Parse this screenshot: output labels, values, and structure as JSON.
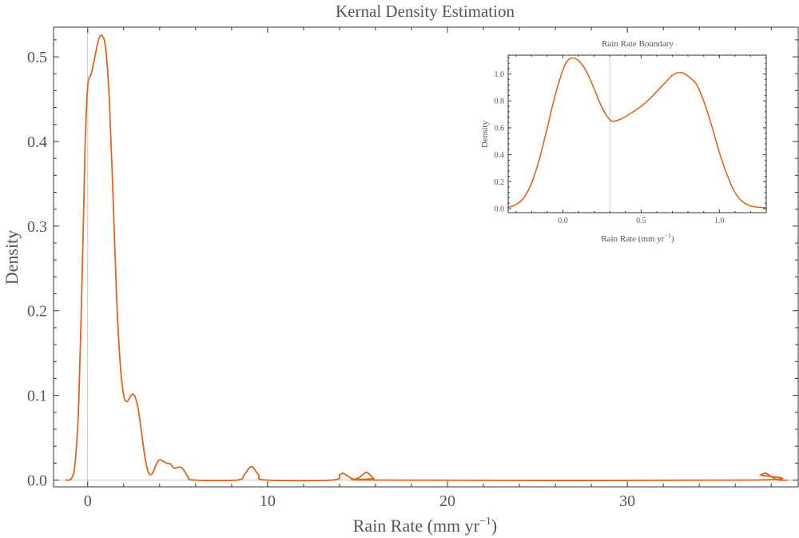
{
  "chart_data": [
    {
      "id": "main",
      "type": "line",
      "title": "Kernal Density Estimation",
      "xlabel_base": "Rain Rate (mm yr",
      "xlabel_sup": "−1",
      "xlabel_tail": ")",
      "ylabel": "Density",
      "xlim": [
        -1.9,
        39.5
      ],
      "ylim": [
        -0.008,
        0.535
      ],
      "xticks": [
        0,
        10,
        20,
        30
      ],
      "xtick_labels": [
        "0",
        "10",
        "20",
        "30"
      ],
      "yticks": [
        0.0,
        0.1,
        0.2,
        0.3,
        0.4,
        0.5
      ],
      "ytick_labels": [
        "0.0",
        "0.1",
        "0.2",
        "0.3",
        "0.4",
        "0.5"
      ],
      "vline_x": 0,
      "hline_y": 0,
      "line_color": "#E0651E",
      "series": [
        {
          "points": [
            [
              -1.2,
              0.0
            ],
            [
              -0.9,
              0.002
            ],
            [
              -0.7,
              0.02
            ],
            [
              -0.5,
              0.09
            ],
            [
              -0.3,
              0.25
            ],
            [
              -0.15,
              0.39
            ],
            [
              0.0,
              0.465
            ],
            [
              0.2,
              0.48
            ],
            [
              0.4,
              0.5
            ],
            [
              0.6,
              0.52
            ],
            [
              0.8,
              0.525
            ],
            [
              1.0,
              0.51
            ],
            [
              1.2,
              0.45
            ],
            [
              1.4,
              0.34
            ],
            [
              1.6,
              0.22
            ],
            [
              1.8,
              0.14
            ],
            [
              2.0,
              0.1
            ],
            [
              2.2,
              0.093
            ],
            [
              2.4,
              0.1
            ],
            [
              2.6,
              0.1
            ],
            [
              2.8,
              0.085
            ],
            [
              3.0,
              0.055
            ],
            [
              3.2,
              0.025
            ],
            [
              3.4,
              0.008
            ],
            [
              3.6,
              0.008
            ],
            [
              3.8,
              0.018
            ],
            [
              4.0,
              0.024
            ],
            [
              4.2,
              0.022
            ],
            [
              4.4,
              0.02
            ],
            [
              4.6,
              0.019
            ],
            [
              4.8,
              0.014
            ],
            [
              5.0,
              0.015
            ],
            [
              5.2,
              0.015
            ],
            [
              5.4,
              0.01
            ],
            [
              5.6,
              0.003
            ],
            [
              5.9,
              0.0
            ],
            [
              8.3,
              0.0
            ],
            [
              8.7,
              0.006
            ],
            [
              9.1,
              0.016
            ],
            [
              9.5,
              0.006
            ],
            [
              9.9,
              0.0
            ],
            [
              13.6,
              0.0
            ],
            [
              14.0,
              0.006
            ],
            [
              14.2,
              0.008
            ],
            [
              14.5,
              0.004
            ],
            [
              14.8,
              0.001
            ],
            [
              15.1,
              0.003
            ],
            [
              15.5,
              0.009
            ],
            [
              15.9,
              0.002
            ],
            [
              16.3,
              0.0
            ],
            [
              37.0,
              0.0
            ],
            [
              37.4,
              0.006
            ],
            [
              37.7,
              0.008
            ],
            [
              38.0,
              0.004
            ],
            [
              38.4,
              0.0
            ],
            [
              38.9,
              0.0
            ]
          ]
        }
      ]
    },
    {
      "id": "inset",
      "type": "line",
      "title": "Rain Rate Boundary",
      "xlabel_base": "Rain Rate (mm yr",
      "xlabel_sup": "−1",
      "xlabel_tail": ")",
      "ylabel": "Density",
      "xlim": [
        -0.35,
        1.3
      ],
      "ylim": [
        -0.03,
        1.14
      ],
      "xticks": [
        0.0,
        0.5,
        1.0
      ],
      "xtick_labels": [
        "0.0",
        "0.5",
        "1.0"
      ],
      "yticks": [
        0.0,
        0.2,
        0.4,
        0.6,
        0.8,
        1.0
      ],
      "ytick_labels": [
        "0.0",
        "0.2",
        "0.4",
        "0.6",
        "0.8",
        "1.0"
      ],
      "vline_x": 0.3,
      "line_color": "#E0651E",
      "series": [
        {
          "points": [
            [
              -0.35,
              0.01
            ],
            [
              -0.3,
              0.03
            ],
            [
              -0.25,
              0.08
            ],
            [
              -0.2,
              0.19
            ],
            [
              -0.15,
              0.37
            ],
            [
              -0.1,
              0.6
            ],
            [
              -0.05,
              0.84
            ],
            [
              0.0,
              1.03
            ],
            [
              0.03,
              1.1
            ],
            [
              0.06,
              1.12
            ],
            [
              0.1,
              1.1
            ],
            [
              0.15,
              1.02
            ],
            [
              0.2,
              0.89
            ],
            [
              0.25,
              0.75
            ],
            [
              0.3,
              0.66
            ],
            [
              0.33,
              0.65
            ],
            [
              0.38,
              0.67
            ],
            [
              0.45,
              0.72
            ],
            [
              0.5,
              0.76
            ],
            [
              0.55,
              0.81
            ],
            [
              0.6,
              0.87
            ],
            [
              0.65,
              0.93
            ],
            [
              0.7,
              0.99
            ],
            [
              0.74,
              1.01
            ],
            [
              0.78,
              1.0
            ],
            [
              0.85,
              0.93
            ],
            [
              0.9,
              0.8
            ],
            [
              0.95,
              0.62
            ],
            [
              1.0,
              0.42
            ],
            [
              1.05,
              0.25
            ],
            [
              1.1,
              0.12
            ],
            [
              1.15,
              0.05
            ],
            [
              1.2,
              0.02
            ],
            [
              1.25,
              0.01
            ],
            [
              1.3,
              0.005
            ]
          ]
        }
      ]
    }
  ]
}
